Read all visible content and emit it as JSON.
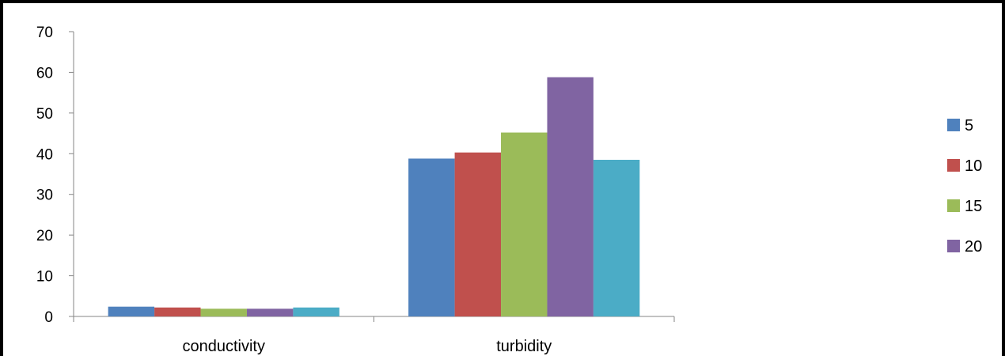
{
  "chart_data": {
    "type": "bar",
    "title": "",
    "xlabel": "",
    "ylabel": "",
    "categories": [
      "conductivity",
      "turbidity"
    ],
    "ylim": [
      0,
      70
    ],
    "yticks": [
      0,
      10,
      20,
      30,
      40,
      50,
      60,
      70
    ],
    "grid": false,
    "legend_position": "right",
    "series": [
      {
        "name": "5",
        "color": "#4F81BD",
        "values": [
          2.4,
          38.8
        ]
      },
      {
        "name": "10",
        "color": "#C0504D",
        "values": [
          2.2,
          40.3
        ]
      },
      {
        "name": "15",
        "color": "#9BBB59",
        "values": [
          1.9,
          45.2
        ]
      },
      {
        "name": "20",
        "color": "#8064A2",
        "values": [
          1.9,
          58.8
        ]
      },
      {
        "name": "",
        "color": "#4BACC6",
        "values": [
          2.2,
          38.5
        ]
      }
    ]
  }
}
